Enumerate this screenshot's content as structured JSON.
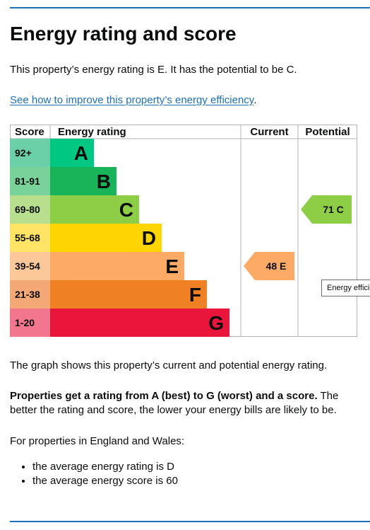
{
  "page": {
    "title": "Energy rating and score",
    "intro": "This property’s energy rating is E. It has the potential to be C.",
    "improve_link": "See how to improve this property’s energy efficiency",
    "improve_link_suffix": ".",
    "graph_note": "The graph shows this property’s current and potential energy rating.",
    "props_bold": "Properties get a rating from A (best) to G (worst) and a score.",
    "props_rest": " The better the rating and score, the lower your energy bills are likely to be.",
    "england_wales": "For properties in England and Wales:",
    "bullets": [
      "the average energy rating is D",
      "the average energy score is 60"
    ],
    "tooltip": "Energy efficiency chart"
  },
  "chart_data": {
    "type": "bar",
    "headers": {
      "score": "Score",
      "rating": "Energy rating",
      "current": "Current",
      "potential": "Potential"
    },
    "bands": [
      {
        "score_range": "92+",
        "letter": "A",
        "color": "#00c781",
        "label_color": "#6bcfa7"
      },
      {
        "score_range": "81-91",
        "letter": "B",
        "color": "#19b459",
        "label_color": "#7ad29b"
      },
      {
        "score_range": "69-80",
        "letter": "C",
        "color": "#8dce46",
        "label_color": "#b7df8e"
      },
      {
        "score_range": "55-68",
        "letter": "D",
        "color": "#ffd500",
        "label_color": "#ffe466"
      },
      {
        "score_range": "39-54",
        "letter": "E",
        "color": "#fcaa65",
        "label_color": "#fcc89a"
      },
      {
        "score_range": "21-38",
        "letter": "F",
        "color": "#ef8023",
        "label_color": "#f4a875"
      },
      {
        "score_range": "1-20",
        "letter": "G",
        "color": "#e9153b",
        "label_color": "#f2778e"
      }
    ],
    "current": {
      "score": 48,
      "letter": "E",
      "label": "48  E",
      "color": "#fcaa65"
    },
    "potential": {
      "score": 71,
      "letter": "C",
      "label": "71  C",
      "color": "#8dce46"
    }
  }
}
